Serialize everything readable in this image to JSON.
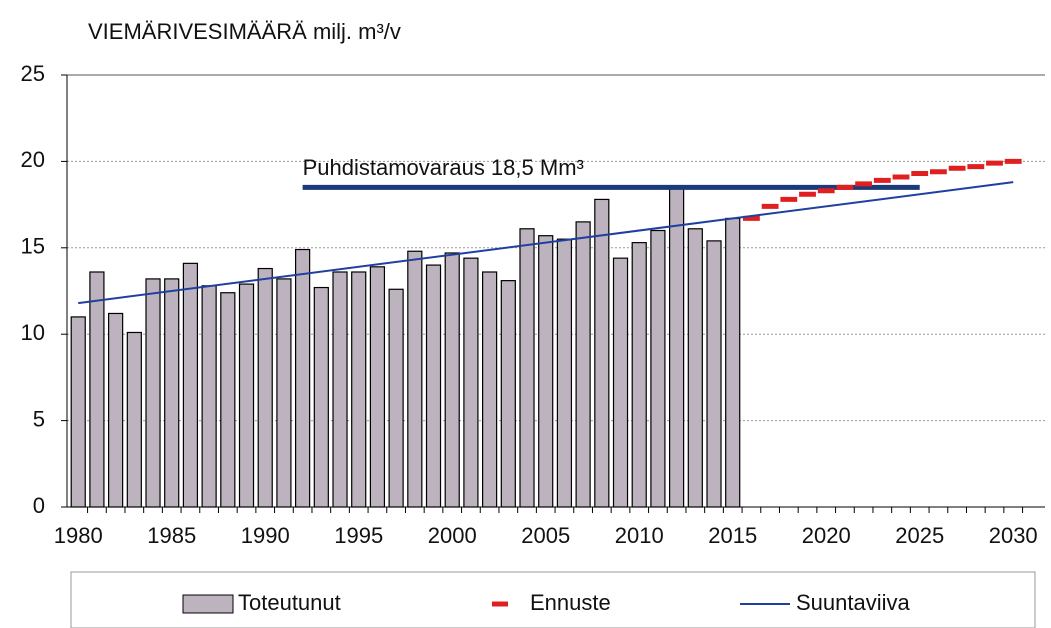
{
  "chart_data": {
    "type": "bar",
    "title": "VIEMÄRIVESIMÄÄRÄ  milj. m³/v",
    "x": [
      1980,
      1981,
      1982,
      1983,
      1984,
      1985,
      1986,
      1987,
      1988,
      1989,
      1990,
      1991,
      1992,
      1993,
      1994,
      1995,
      1996,
      1997,
      1998,
      1999,
      2000,
      2001,
      2002,
      2003,
      2004,
      2005,
      2006,
      2007,
      2008,
      2009,
      2010,
      2011,
      2012,
      2013,
      2014,
      2015,
      2016,
      2017,
      2018,
      2019,
      2020,
      2021,
      2022,
      2023,
      2024,
      2025,
      2026,
      2027,
      2028,
      2029,
      2030
    ],
    "xlim": [
      1979.4,
      2031.7
    ],
    "xticks": [
      1980,
      1985,
      1990,
      1995,
      2000,
      2005,
      2010,
      2015,
      2020,
      2025,
      2030
    ],
    "ylim": [
      0,
      25
    ],
    "yticks": [
      0,
      5,
      10,
      15,
      20,
      25
    ],
    "grid": true,
    "series": [
      {
        "name": "Toteutunut",
        "color": "#bdb3bf",
        "values": [
          11.0,
          13.6,
          11.2,
          10.1,
          13.2,
          13.2,
          14.1,
          12.8,
          12.4,
          12.9,
          13.8,
          13.2,
          14.9,
          12.7,
          13.6,
          13.6,
          13.9,
          12.6,
          14.8,
          14.0,
          14.7,
          14.4,
          13.6,
          13.1,
          16.1,
          15.7,
          15.5,
          16.5,
          17.8,
          14.4,
          15.3,
          16.0,
          18.6,
          16.1,
          15.4,
          16.7,
          null,
          null,
          null,
          null,
          null,
          null,
          null,
          null,
          null,
          null,
          null,
          null,
          null,
          null,
          null
        ]
      },
      {
        "name": "Ennuste",
        "color": "#e02020",
        "values": [
          null,
          null,
          null,
          null,
          null,
          null,
          null,
          null,
          null,
          null,
          null,
          null,
          null,
          null,
          null,
          null,
          null,
          null,
          null,
          null,
          null,
          null,
          null,
          null,
          null,
          null,
          null,
          null,
          null,
          null,
          null,
          null,
          null,
          null,
          null,
          null,
          16.7,
          17.4,
          17.8,
          18.1,
          18.3,
          18.5,
          18.7,
          18.9,
          19.1,
          19.3,
          19.4,
          19.6,
          19.7,
          19.9,
          20.0
        ]
      },
      {
        "name": "Suuntaviiva",
        "color": "#2040a0",
        "x": [
          1980,
          2030
        ],
        "values": [
          11.8,
          18.8
        ]
      }
    ],
    "reference_line": {
      "label": "Puhdistamovaraus 18,5 Mm³",
      "value": 18.5,
      "from": 1992,
      "to": 2025,
      "color": "#1a3a7a"
    }
  }
}
